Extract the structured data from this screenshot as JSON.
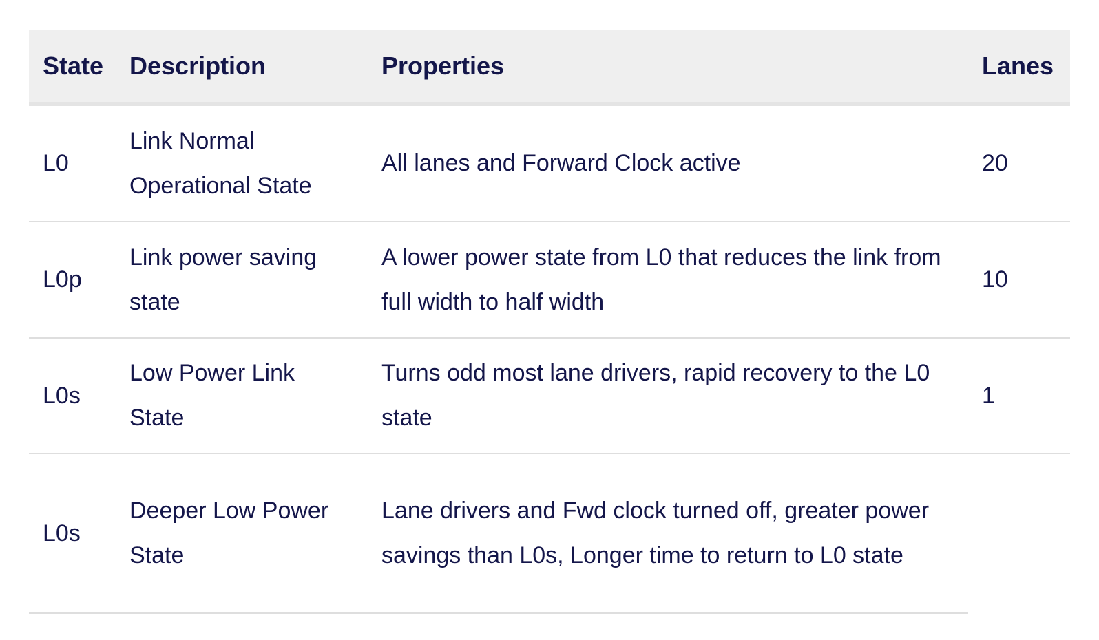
{
  "table": {
    "headers": {
      "state": "State",
      "description": "Description",
      "properties": "Properties",
      "lanes": "Lanes"
    },
    "rows": [
      {
        "state": "L0",
        "description": "Link Normal Operational State",
        "properties": "All lanes and Forward Clock active",
        "lanes": "20"
      },
      {
        "state": "L0p",
        "description": "Link power saving state",
        "properties": "A lower power state from L0 that reduces the link from full width to half width",
        "lanes": "10"
      },
      {
        "state": "L0s",
        "description": "Low Power Link State",
        "properties": "Turns odd most lane drivers, rapid recovery to the L0 state",
        "lanes": "1"
      },
      {
        "state": "L0s",
        "description": "Deeper Low Power State",
        "properties": "Lane drivers and Fwd clock turned off, greater power savings than L0s, Longer time to return to L0 state",
        "lanes": ""
      }
    ]
  }
}
